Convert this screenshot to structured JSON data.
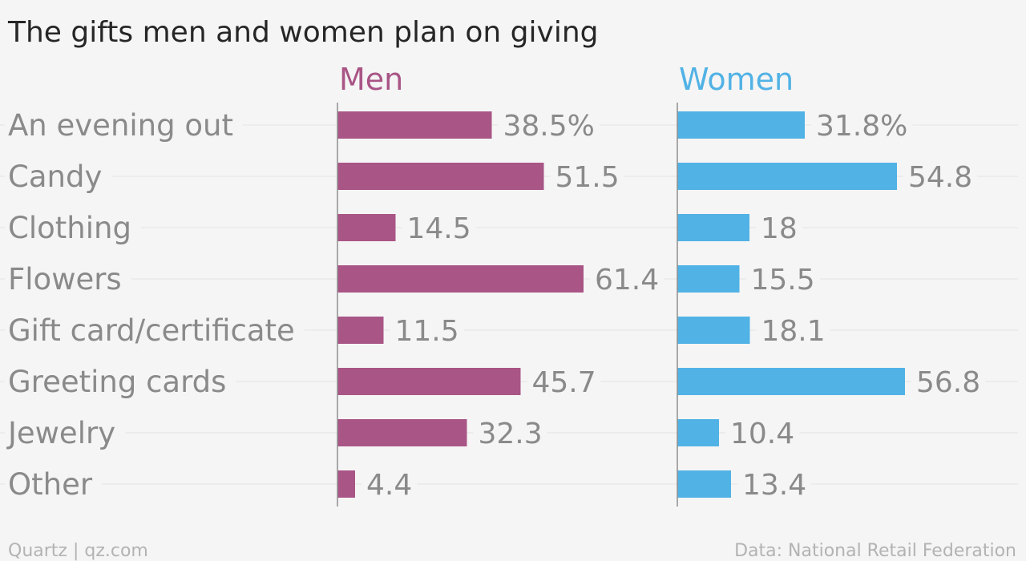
{
  "title": "The gifts men and women plan on giving",
  "footer": {
    "left": "Quartz | qz.com",
    "right": "Data: National Retail Federation"
  },
  "colors": {
    "men": "#a95586",
    "women": "#51b2e5",
    "text": "#8a8a8a",
    "grid": "#e3e3e3",
    "axis": "#8f8f8f"
  },
  "chart_data": {
    "type": "bar",
    "orientation": "horizontal",
    "title": "The gifts men and women plan on giving",
    "categories": [
      "An evening out",
      "Candy",
      "Clothing",
      "Flowers",
      "Gift card/certificate",
      "Greeting cards",
      "Jewelry",
      "Other"
    ],
    "series": [
      {
        "name": "Men",
        "values": [
          38.5,
          51.5,
          14.5,
          61.4,
          11.5,
          45.7,
          32.3,
          4.4
        ],
        "labels": [
          "38.5%",
          "51.5",
          "14.5",
          "61.4",
          "11.5",
          "45.7",
          "32.3",
          "4.4"
        ]
      },
      {
        "name": "Women",
        "values": [
          31.8,
          54.8,
          18,
          15.5,
          18.1,
          56.8,
          10.4,
          13.4
        ],
        "labels": [
          "31.8%",
          "54.8",
          "18",
          "15.5",
          "18.1",
          "56.8",
          "10.4",
          "13.4"
        ]
      }
    ],
    "unit": "%",
    "xlim": [
      0,
      85
    ],
    "grid": true,
    "layout": "small-multiples"
  }
}
